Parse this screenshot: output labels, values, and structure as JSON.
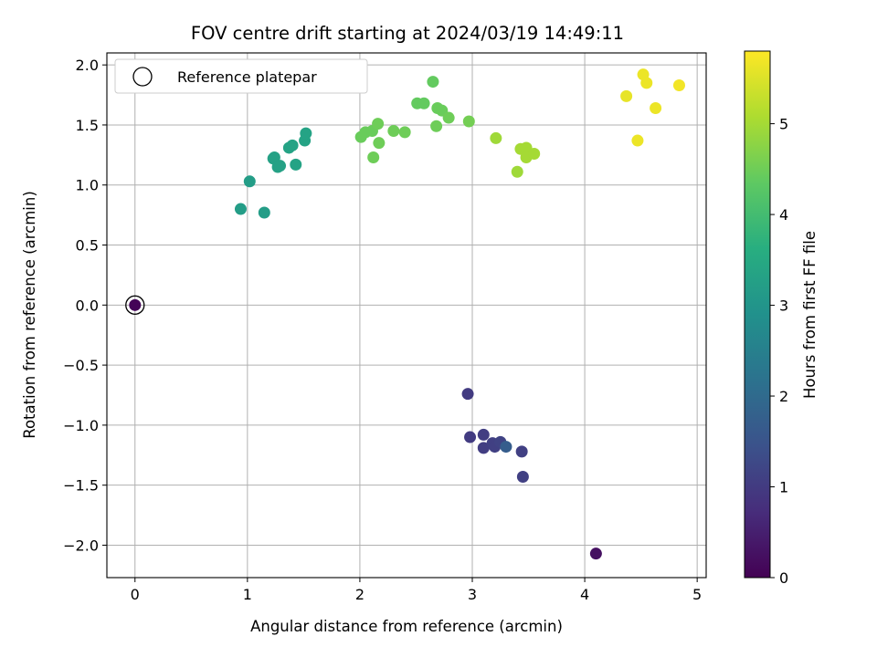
{
  "chart_data": {
    "type": "scatter",
    "title": "FOV centre drift starting at 2024/03/19 14:49:11",
    "xlabel": "Angular distance from reference (arcmin)",
    "ylabel": "Rotation from reference (arcmin)",
    "xlim": [
      -0.25,
      5.08
    ],
    "ylim": [
      -2.27,
      2.1
    ],
    "xticks": [
      0,
      1,
      2,
      3,
      4,
      5
    ],
    "xtick_labels": [
      "0",
      "1",
      "2",
      "3",
      "4",
      "5"
    ],
    "yticks": [
      -2.0,
      -1.5,
      -1.0,
      -0.5,
      0.0,
      0.5,
      1.0,
      1.5,
      2.0
    ],
    "ytick_labels": [
      "−2.0",
      "−1.5",
      "−1.0",
      "−0.5",
      "0.0",
      "0.5",
      "1.0",
      "1.5",
      "2.0"
    ],
    "grid": true,
    "colormap": "viridis",
    "colorbar": {
      "label": "Hours from first FF file",
      "range": [
        0,
        5.8
      ],
      "ticks": [
        0,
        1,
        2,
        3,
        4,
        5
      ],
      "tick_labels": [
        "0",
        "1",
        "2",
        "3",
        "4",
        "5"
      ]
    },
    "legend": {
      "position": "top-left",
      "entries": [
        "Reference platepar"
      ]
    },
    "reference_point": {
      "x": 0.0,
      "y": 0.0
    },
    "points": [
      {
        "x": 0.0,
        "y": 0.0,
        "c": 0.05
      },
      {
        "x": 4.1,
        "y": -2.07,
        "c": 0.25
      },
      {
        "x": 2.96,
        "y": -0.74,
        "c": 1.0
      },
      {
        "x": 2.98,
        "y": -1.1,
        "c": 1.0
      },
      {
        "x": 3.1,
        "y": -1.08,
        "c": 1.05
      },
      {
        "x": 3.1,
        "y": -1.19,
        "c": 1.05
      },
      {
        "x": 3.18,
        "y": -1.15,
        "c": 1.1
      },
      {
        "x": 3.2,
        "y": -1.18,
        "c": 1.1
      },
      {
        "x": 3.25,
        "y": -1.14,
        "c": 1.15
      },
      {
        "x": 3.44,
        "y": -1.22,
        "c": 1.1
      },
      {
        "x": 3.45,
        "y": -1.43,
        "c": 1.1
      },
      {
        "x": 3.3,
        "y": -1.18,
        "c": 1.7
      },
      {
        "x": 0.94,
        "y": 0.8,
        "c": 3.2
      },
      {
        "x": 1.02,
        "y": 1.03,
        "c": 3.2
      },
      {
        "x": 1.15,
        "y": 0.77,
        "c": 3.2
      },
      {
        "x": 1.23,
        "y": 1.22,
        "c": 3.3
      },
      {
        "x": 1.24,
        "y": 1.23,
        "c": 3.3
      },
      {
        "x": 1.27,
        "y": 1.15,
        "c": 3.3
      },
      {
        "x": 1.29,
        "y": 1.16,
        "c": 3.3
      },
      {
        "x": 1.37,
        "y": 1.31,
        "c": 3.35
      },
      {
        "x": 1.4,
        "y": 1.33,
        "c": 3.35
      },
      {
        "x": 1.43,
        "y": 1.17,
        "c": 3.35
      },
      {
        "x": 1.51,
        "y": 1.37,
        "c": 3.35
      },
      {
        "x": 1.52,
        "y": 1.43,
        "c": 3.35
      },
      {
        "x": 2.01,
        "y": 1.4,
        "c": 4.45
      },
      {
        "x": 2.05,
        "y": 1.44,
        "c": 4.45
      },
      {
        "x": 2.11,
        "y": 1.45,
        "c": 4.45
      },
      {
        "x": 2.12,
        "y": 1.23,
        "c": 4.5
      },
      {
        "x": 2.16,
        "y": 1.51,
        "c": 4.5
      },
      {
        "x": 2.17,
        "y": 1.35,
        "c": 4.5
      },
      {
        "x": 2.3,
        "y": 1.45,
        "c": 4.5
      },
      {
        "x": 2.4,
        "y": 1.44,
        "c": 4.5
      },
      {
        "x": 2.51,
        "y": 1.68,
        "c": 4.4
      },
      {
        "x": 2.57,
        "y": 1.68,
        "c": 4.4
      },
      {
        "x": 2.65,
        "y": 1.86,
        "c": 4.4
      },
      {
        "x": 2.68,
        "y": 1.49,
        "c": 4.5
      },
      {
        "x": 2.69,
        "y": 1.64,
        "c": 4.45
      },
      {
        "x": 2.73,
        "y": 1.62,
        "c": 4.45
      },
      {
        "x": 2.79,
        "y": 1.56,
        "c": 4.5
      },
      {
        "x": 2.97,
        "y": 1.53,
        "c": 4.55
      },
      {
        "x": 3.21,
        "y": 1.39,
        "c": 4.95
      },
      {
        "x": 3.4,
        "y": 1.11,
        "c": 4.95
      },
      {
        "x": 3.43,
        "y": 1.3,
        "c": 5.0
      },
      {
        "x": 3.48,
        "y": 1.31,
        "c": 5.0
      },
      {
        "x": 3.48,
        "y": 1.23,
        "c": 5.0
      },
      {
        "x": 3.55,
        "y": 1.26,
        "c": 5.0
      },
      {
        "x": 4.37,
        "y": 1.74,
        "c": 5.6
      },
      {
        "x": 4.47,
        "y": 1.37,
        "c": 5.65
      },
      {
        "x": 4.52,
        "y": 1.92,
        "c": 5.65
      },
      {
        "x": 4.55,
        "y": 1.85,
        "c": 5.65
      },
      {
        "x": 4.63,
        "y": 1.64,
        "c": 5.65
      },
      {
        "x": 4.84,
        "y": 1.83,
        "c": 5.7
      }
    ]
  }
}
